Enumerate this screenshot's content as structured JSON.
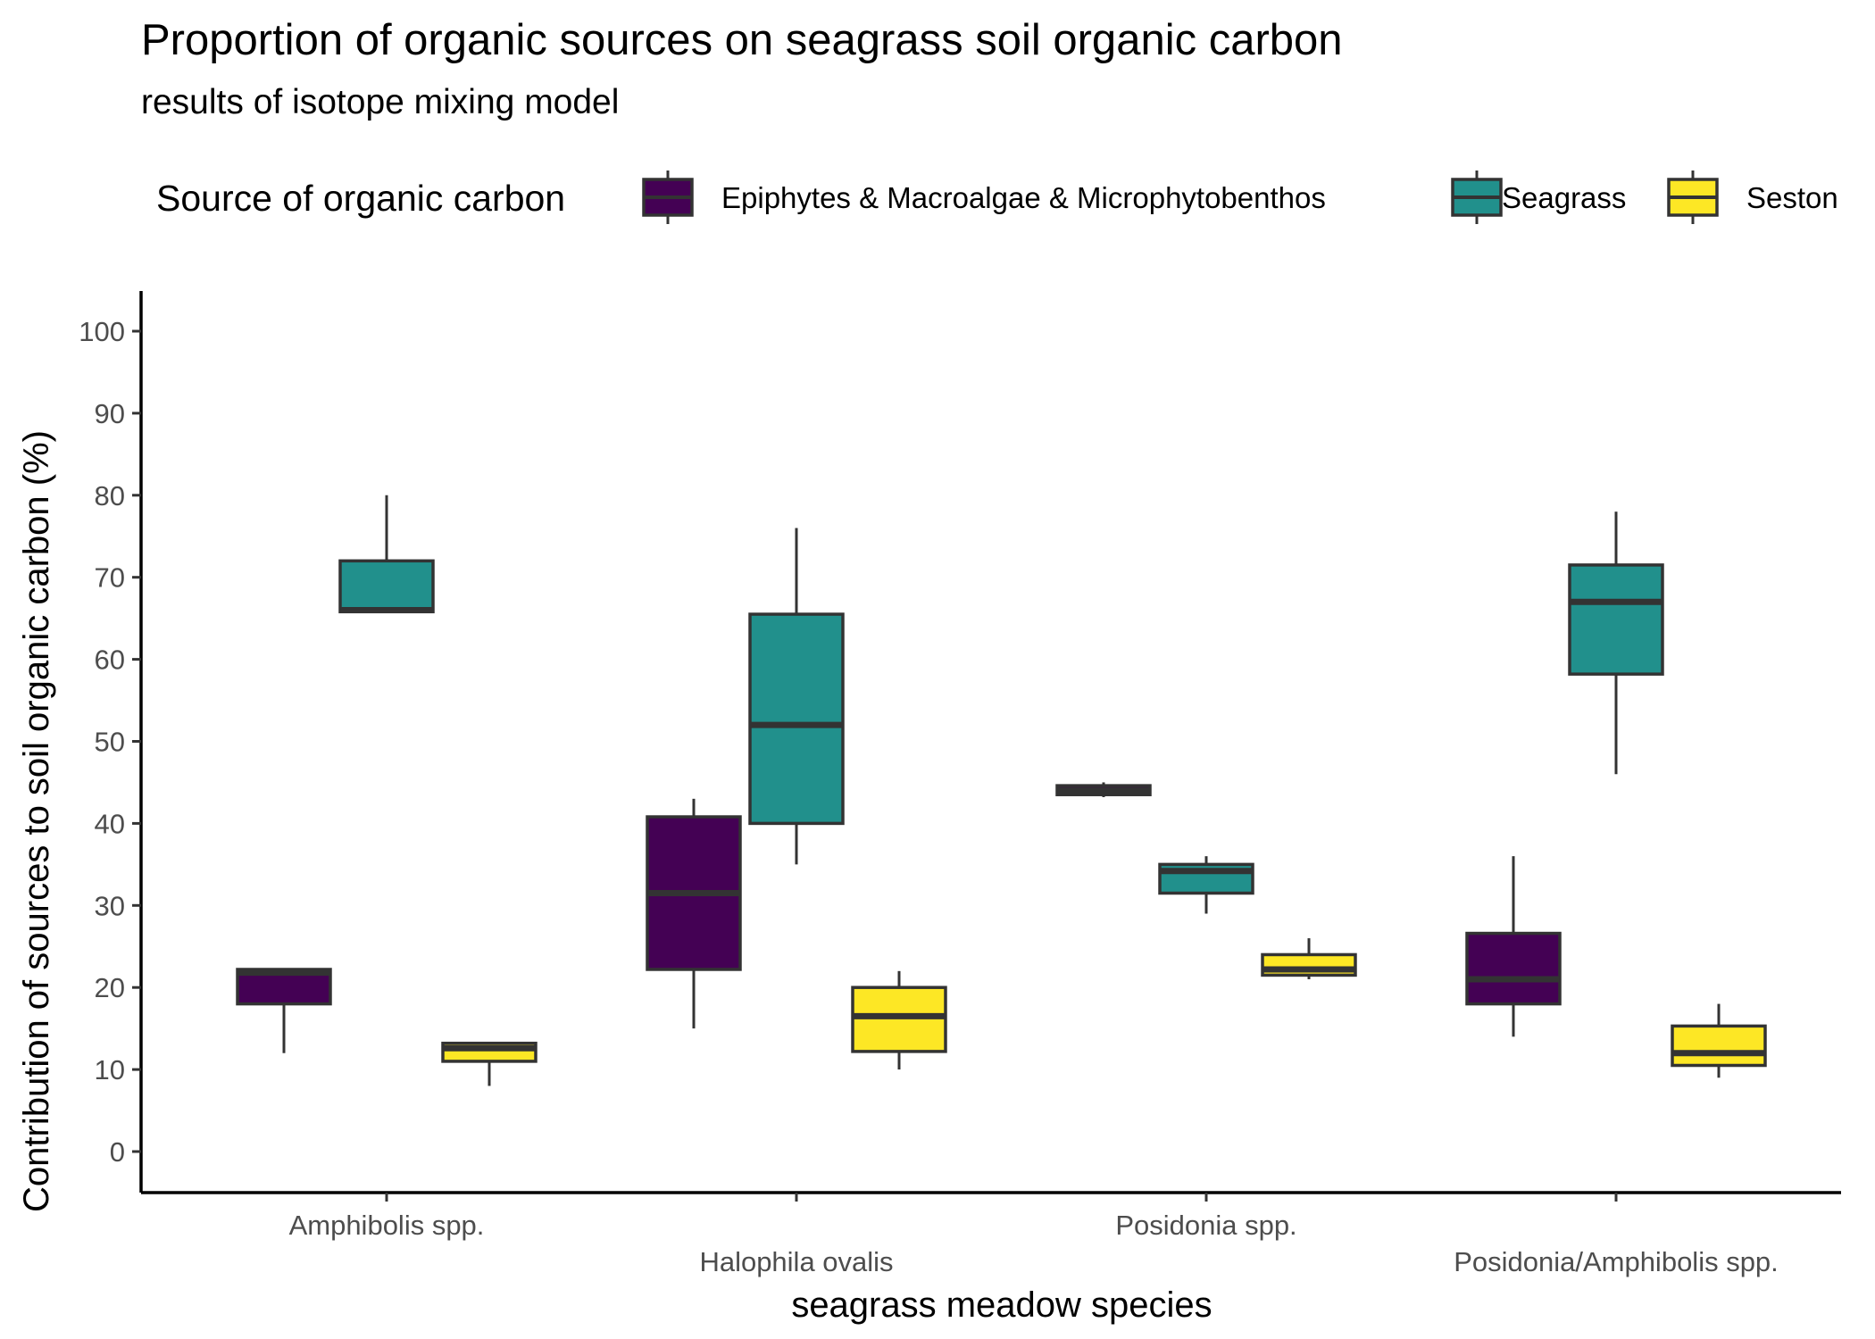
{
  "chart_data": {
    "type": "boxplot",
    "title": "Proportion of organic sources on seagrass soil organic carbon",
    "subtitle": "results of isotope mixing model",
    "xlabel": "seagrass meadow species",
    "ylabel": "Contribution of sources to soil organic carbon (%)",
    "ylim": [
      -5,
      105
    ],
    "yticks": [
      0,
      10,
      20,
      30,
      40,
      50,
      60,
      70,
      80,
      90,
      100
    ],
    "grid": false,
    "legend": {
      "title": "Source of organic carbon",
      "placement": "top"
    },
    "categories": [
      "Amphibolis spp.",
      "Halophila ovalis",
      "Posidonia spp.",
      "Posidonia/Amphibolis spp."
    ],
    "series": [
      {
        "name": "Epiphytes & Macroalgae & Microphytobenthos",
        "color": "#440154",
        "boxes": [
          {
            "min": 12,
            "q1": 18,
            "median": 21.8,
            "q3": 22.2,
            "max": 22.2
          },
          {
            "min": 15,
            "q1": 22.2,
            "median": 31.5,
            "q3": 40.8,
            "max": 43
          },
          {
            "min": 43.2,
            "q1": 43.5,
            "median": 44,
            "q3": 44.6,
            "max": 45
          },
          {
            "min": 14,
            "q1": 18,
            "median": 21,
            "q3": 26.6,
            "max": 36
          }
        ]
      },
      {
        "name": "Seagrass",
        "color": "#21908C",
        "boxes": [
          {
            "min": 65.8,
            "q1": 65.8,
            "median": 66,
            "q3": 72,
            "max": 80
          },
          {
            "min": 35,
            "q1": 40,
            "median": 52,
            "q3": 65.5,
            "max": 76
          },
          {
            "min": 29,
            "q1": 31.5,
            "median": 34.2,
            "q3": 35,
            "max": 36
          },
          {
            "min": 46,
            "q1": 58.2,
            "median": 67,
            "q3": 71.5,
            "max": 78
          }
        ]
      },
      {
        "name": "Seston",
        "color": "#FDE725",
        "boxes": [
          {
            "min": 8,
            "q1": 11,
            "median": 12.6,
            "q3": 13.2,
            "max": 13.2
          },
          {
            "min": 10,
            "q1": 12.2,
            "median": 16.5,
            "q3": 20,
            "max": 22
          },
          {
            "min": 21,
            "q1": 21.5,
            "median": 22.2,
            "q3": 24,
            "max": 26
          },
          {
            "min": 9,
            "q1": 10.5,
            "median": 12,
            "q3": 15.3,
            "max": 18
          }
        ]
      }
    ]
  }
}
